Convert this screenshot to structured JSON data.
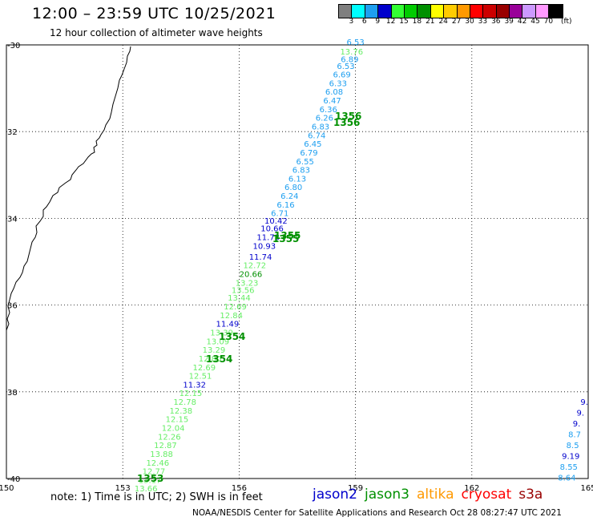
{
  "header": {
    "title": "12:00 – 23:59 UTC 10/25/2021",
    "subtitle": "12 hour collection of altimeter wave heights"
  },
  "legend": {
    "unit": "(ft)",
    "labels": [
      "3",
      "6",
      "9",
      "12",
      "15",
      "18",
      "21",
      "24",
      "27",
      "30",
      "33",
      "36",
      "39",
      "42",
      "45",
      "70"
    ],
    "colors": [
      "#7f7f7f",
      "#00ffff",
      "#1e9ff0",
      "#0000cc",
      "#33ff33",
      "#00cc00",
      "#009000",
      "#ffff00",
      "#ffcc00",
      "#ff9900",
      "#ff0000",
      "#cc0000",
      "#990000",
      "#990099",
      "#cc99ff",
      "#ff99ff",
      "#000000"
    ]
  },
  "map": {
    "lon_range": [
      150,
      165
    ],
    "lat_range": [
      -40,
      -30
    ],
    "lon_ticks": [
      "150",
      "153",
      "156",
      "159",
      "162",
      "165"
    ],
    "lat_ticks": [
      "-30",
      "32",
      "34",
      "36",
      "38",
      "-40"
    ],
    "tracks": [
      {
        "label_a": "1356",
        "label_b": "1356"
      },
      {
        "label_a": "1355",
        "label_b": "1355"
      },
      {
        "label_a": "1354",
        "label_b": "1354"
      },
      {
        "label_a": "1353"
      }
    ],
    "readings": [
      {
        "v": "6.53",
        "lon": 159.0,
        "lat": -30.0,
        "c": "#1e9ff0"
      },
      {
        "v": "13.76",
        "lon": 158.9,
        "lat": -30.22,
        "c": "#66ee66"
      },
      {
        "v": "6.89",
        "lon": 158.85,
        "lat": -30.4,
        "c": "#1e9ff0"
      },
      {
        "v": "6.53",
        "lon": 158.75,
        "lat": -30.55,
        "c": "#1e9ff0"
      },
      {
        "v": "6.69",
        "lon": 158.65,
        "lat": -30.75,
        "c": "#1e9ff0"
      },
      {
        "v": "6.33",
        "lon": 158.55,
        "lat": -30.95,
        "c": "#1e9ff0"
      },
      {
        "v": "6.08",
        "lon": 158.45,
        "lat": -31.15,
        "c": "#1e9ff0"
      },
      {
        "v": "6.47",
        "lon": 158.4,
        "lat": -31.35,
        "c": "#1e9ff0"
      },
      {
        "v": "6.36",
        "lon": 158.3,
        "lat": -31.55,
        "c": "#1e9ff0"
      },
      {
        "v": "6.26",
        "lon": 158.2,
        "lat": -31.75,
        "c": "#1e9ff0"
      },
      {
        "v": "6.83",
        "lon": 158.1,
        "lat": -31.95,
        "c": "#1e9ff0"
      },
      {
        "v": "6.74",
        "lon": 158.0,
        "lat": -32.15,
        "c": "#1e9ff0"
      },
      {
        "v": "6.45",
        "lon": 157.9,
        "lat": -32.35,
        "c": "#1e9ff0"
      },
      {
        "v": "6.79",
        "lon": 157.8,
        "lat": -32.55,
        "c": "#1e9ff0"
      },
      {
        "v": "6.55",
        "lon": 157.7,
        "lat": -32.75,
        "c": "#1e9ff0"
      },
      {
        "v": "6.83",
        "lon": 157.6,
        "lat": -32.95,
        "c": "#1e9ff0"
      },
      {
        "v": "6.13",
        "lon": 157.5,
        "lat": -33.15,
        "c": "#1e9ff0"
      },
      {
        "v": "6.80",
        "lon": 157.4,
        "lat": -33.35,
        "c": "#1e9ff0"
      },
      {
        "v": "6.24",
        "lon": 157.3,
        "lat": -33.55,
        "c": "#1e9ff0"
      },
      {
        "v": "6.16",
        "lon": 157.2,
        "lat": -33.75,
        "c": "#1e9ff0"
      },
      {
        "v": "6.71",
        "lon": 157.05,
        "lat": -33.95,
        "c": "#1e9ff0"
      },
      {
        "v": "10.42",
        "lon": 156.95,
        "lat": -34.12,
        "c": "#0000cc"
      },
      {
        "v": "10.66",
        "lon": 156.85,
        "lat": -34.3,
        "c": "#0000cc"
      },
      {
        "v": "11.73",
        "lon": 156.75,
        "lat": -34.5,
        "c": "#0000cc"
      },
      {
        "v": "10.93",
        "lon": 156.65,
        "lat": -34.7,
        "c": "#0000cc"
      },
      {
        "v": "11.74",
        "lon": 156.55,
        "lat": -34.95,
        "c": "#0000cc"
      },
      {
        "v": "12.72",
        "lon": 156.4,
        "lat": -35.15,
        "c": "#66ee66"
      },
      {
        "v": "20.66",
        "lon": 156.3,
        "lat": -35.35,
        "c": "#009000"
      },
      {
        "v": "13.23",
        "lon": 156.2,
        "lat": -35.55,
        "c": "#66ee66"
      },
      {
        "v": "13.56",
        "lon": 156.1,
        "lat": -35.72,
        "c": "#66ee66"
      },
      {
        "v": "13.44",
        "lon": 156.0,
        "lat": -35.9,
        "c": "#66ee66"
      },
      {
        "v": "12.69",
        "lon": 155.9,
        "lat": -36.1,
        "c": "#66ee66"
      },
      {
        "v": "12.84",
        "lon": 155.8,
        "lat": -36.3,
        "c": "#66ee66"
      },
      {
        "v": "11.49",
        "lon": 155.7,
        "lat": -36.5,
        "c": "#0000cc"
      },
      {
        "v": "13.39",
        "lon": 155.55,
        "lat": -36.7,
        "c": "#66ee66"
      },
      {
        "v": "13.09",
        "lon": 155.45,
        "lat": -36.9,
        "c": "#66ee66"
      },
      {
        "v": "13.29",
        "lon": 155.35,
        "lat": -37.1,
        "c": "#66ee66"
      },
      {
        "v": "12.80",
        "lon": 155.25,
        "lat": -37.3,
        "c": "#66ee66"
      },
      {
        "v": "12.69",
        "lon": 155.1,
        "lat": -37.5,
        "c": "#66ee66"
      },
      {
        "v": "12.51",
        "lon": 155.0,
        "lat": -37.7,
        "c": "#66ee66"
      },
      {
        "v": "11.32",
        "lon": 154.85,
        "lat": -37.9,
        "c": "#0000cc"
      },
      {
        "v": "12.15",
        "lon": 154.75,
        "lat": -38.1,
        "c": "#66ee66"
      },
      {
        "v": "12.78",
        "lon": 154.6,
        "lat": -38.3,
        "c": "#66ee66"
      },
      {
        "v": "12.38",
        "lon": 154.5,
        "lat": -38.5,
        "c": "#66ee66"
      },
      {
        "v": "12.15",
        "lon": 154.4,
        "lat": -38.7,
        "c": "#66ee66"
      },
      {
        "v": "12.04",
        "lon": 154.3,
        "lat": -38.9,
        "c": "#66ee66"
      },
      {
        "v": "12.26",
        "lon": 154.2,
        "lat": -39.1,
        "c": "#66ee66"
      },
      {
        "v": "12.87",
        "lon": 154.1,
        "lat": -39.3,
        "c": "#66ee66"
      },
      {
        "v": "13.88",
        "lon": 154.0,
        "lat": -39.5,
        "c": "#66ee66"
      },
      {
        "v": "12.46",
        "lon": 153.9,
        "lat": -39.7,
        "c": "#66ee66"
      },
      {
        "v": "12.77",
        "lon": 153.8,
        "lat": -39.9,
        "c": "#66ee66"
      },
      {
        "v": "13.17",
        "lon": 153.7,
        "lat": -40.1,
        "c": "#66ee66"
      },
      {
        "v": "13.66",
        "lon": 153.6,
        "lat": -40.3,
        "c": "#66ee66"
      },
      {
        "v": "9.",
        "lon": 164.9,
        "lat": -38.3,
        "c": "#0000cc"
      },
      {
        "v": "9.",
        "lon": 164.8,
        "lat": -38.55,
        "c": "#0000cc"
      },
      {
        "v": "9.",
        "lon": 164.7,
        "lat": -38.8,
        "c": "#0000cc"
      },
      {
        "v": "8.7",
        "lon": 164.65,
        "lat": -39.05,
        "c": "#1e9ff0"
      },
      {
        "v": "8.5",
        "lon": 164.6,
        "lat": -39.3,
        "c": "#1e9ff0"
      },
      {
        "v": "9.19",
        "lon": 164.55,
        "lat": -39.55,
        "c": "#0000cc"
      },
      {
        "v": "8.55",
        "lon": 164.5,
        "lat": -39.8,
        "c": "#1e9ff0"
      },
      {
        "v": "8.64",
        "lon": 164.45,
        "lat": -40.05,
        "c": "#1e9ff0"
      }
    ]
  },
  "note": "note: 1) Time is in UTC; 2) SWH is in feet",
  "satellites": [
    {
      "name": "jason2",
      "color": "#0000cc"
    },
    {
      "name": "jason3",
      "color": "#009000"
    },
    {
      "name": "altika",
      "color": "#ff9900"
    },
    {
      "name": "cryosat",
      "color": "#ff0000"
    },
    {
      "name": "s3a",
      "color": "#990000"
    }
  ],
  "footer": "NOAA/NESDIS Center for Satellite Applications and Research     Oct 28 08:27:47 UTC 2021"
}
